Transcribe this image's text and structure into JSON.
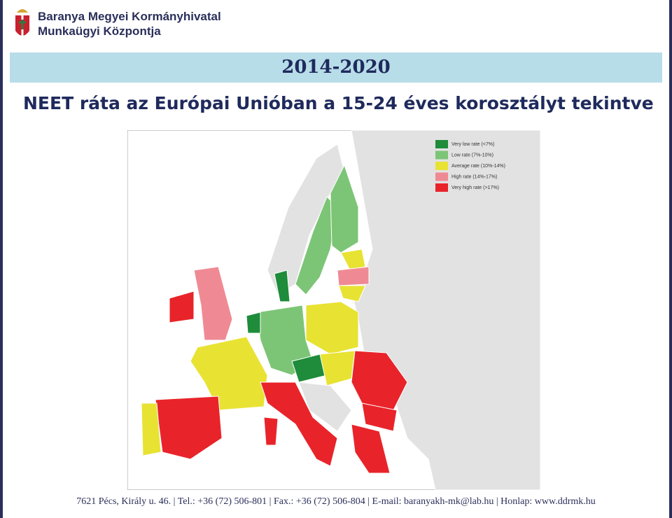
{
  "header": {
    "org_line1": "Baranya Megyei Kormányhivatal",
    "org_line2": "Munkaügyi Központja"
  },
  "period": "2014-2020",
  "title": "NEET ráta az Európai Unióban a 15-24 éves korosztályt tekintve",
  "map": {
    "legend": [
      {
        "label": "Very low rate (<7%)",
        "color": "#1e8c3a"
      },
      {
        "label": "Low rate (7%-10%)",
        "color": "#7cc576"
      },
      {
        "label": "Average rate (10%-14%)",
        "color": "#e8e233"
      },
      {
        "label": "High rate (14%-17%)",
        "color": "#ef8a94"
      },
      {
        "label": "Very high rate (>17%)",
        "color": "#e8242a"
      }
    ]
  },
  "footer": "7621 Pécs, Király u. 46. | Tel.: +36 (72) 506-801 | Fax.: +36 (72) 506-804 | E-mail: baranyakh-mk@lab.hu | Honlap: www.ddrmk.hu"
}
